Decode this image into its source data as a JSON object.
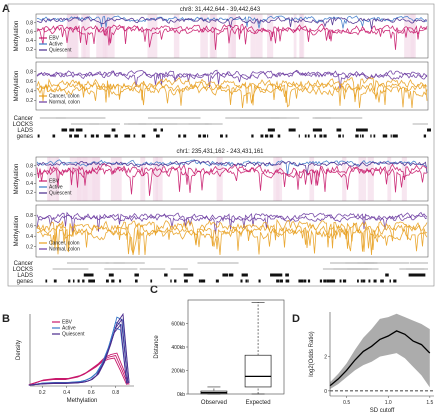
{
  "panel_labels": {
    "a": "A",
    "b": "B",
    "c": "C",
    "d": "D"
  },
  "colors": {
    "ebv": "#c8196c",
    "active": "#3a78c8",
    "quiescent": "#4a2a8c",
    "cancer": "#e8a020",
    "normal": "#6a3aa0",
    "shade": "#f3dcea",
    "gray_band": "#bdbdbd"
  },
  "panel_a": {
    "region1_title": "chr8: 31,442,644 - 39,442,643",
    "region2_title": "chr1: 235,431,162 - 243,431,161",
    "ylabel": "Methylation",
    "yticks": [
      "0.2",
      "0.4",
      "0.6",
      "0.8"
    ],
    "legend_top": [
      "EBV",
      "Active",
      "Quiescent"
    ],
    "legend_bottom": [
      "Cancer, colon",
      "Normal, colon"
    ],
    "track_labels": [
      "Cancer",
      "LOCKS",
      "LADS",
      "genes"
    ]
  },
  "chart_data": [
    {
      "type": "line",
      "title": "",
      "xlabel": "Methylation",
      "ylabel": "Density",
      "xticks": [
        "0.2",
        "0.4",
        "0.6",
        "0.8"
      ],
      "xlim": [
        0.1,
        0.95
      ],
      "series": [
        {
          "name": "EBV",
          "x": [
            0.1,
            0.2,
            0.3,
            0.4,
            0.5,
            0.55,
            0.6,
            0.65,
            0.7,
            0.75,
            0.8,
            0.85,
            0.9
          ],
          "values": [
            0.05,
            0.2,
            0.25,
            0.25,
            0.35,
            0.45,
            0.6,
            0.75,
            0.95,
            1.05,
            1.1,
            0.6,
            0.05
          ]
        },
        {
          "name": "Active",
          "x": [
            0.1,
            0.2,
            0.3,
            0.4,
            0.5,
            0.55,
            0.6,
            0.65,
            0.7,
            0.75,
            0.8,
            0.85,
            0.9
          ],
          "values": [
            0.03,
            0.1,
            0.12,
            0.12,
            0.15,
            0.2,
            0.3,
            0.5,
            0.9,
            1.5,
            2.3,
            2.2,
            0.1
          ]
        },
        {
          "name": "Quiescent",
          "x": [
            0.1,
            0.2,
            0.3,
            0.4,
            0.5,
            0.55,
            0.6,
            0.65,
            0.7,
            0.75,
            0.8,
            0.85,
            0.9
          ],
          "values": [
            0.03,
            0.08,
            0.1,
            0.1,
            0.12,
            0.15,
            0.22,
            0.4,
            0.8,
            1.4,
            2.1,
            2.4,
            0.1
          ]
        }
      ]
    },
    {
      "type": "box",
      "title": "",
      "ylabel": "Distance",
      "yticks": [
        "0kb",
        "200kb",
        "400kb",
        "600kb"
      ],
      "ylim": [
        0,
        800
      ],
      "categories": [
        "Observed",
        "Expected"
      ],
      "boxes": [
        {
          "name": "Observed",
          "whisker_low": 0,
          "q1": 2,
          "median": 12,
          "q3": 25,
          "whisker_high": 60
        },
        {
          "name": "Expected",
          "whisker_low": 0,
          "q1": 60,
          "median": 150,
          "q3": 330,
          "whisker_high": 780
        }
      ]
    },
    {
      "type": "area",
      "title": "",
      "xlabel": "SD cutoff",
      "ylabel": "log2(Odds Ratio)",
      "xticks": [
        "0.5",
        "1.0",
        "1.5"
      ],
      "yticks": [
        "0",
        "2"
      ],
      "xlim": [
        0.3,
        1.55
      ],
      "ylim": [
        -0.3,
        4.6
      ],
      "x": [
        0.3,
        0.4,
        0.5,
        0.6,
        0.7,
        0.8,
        0.9,
        1.0,
        1.1,
        1.2,
        1.3,
        1.4,
        1.5
      ],
      "series": [
        {
          "name": "",
          "values": [
            0.3,
            0.7,
            1.2,
            1.8,
            2.3,
            2.6,
            3.0,
            3.2,
            3.5,
            3.3,
            2.9,
            2.7,
            2.2
          ],
          "lower": [
            0.1,
            0.4,
            0.8,
            1.2,
            1.5,
            1.7,
            2.0,
            2.1,
            2.2,
            1.9,
            1.4,
            0.9,
            0.2
          ],
          "upper": [
            0.5,
            1.0,
            1.6,
            2.4,
            3.1,
            3.6,
            4.2,
            4.3,
            4.5,
            4.3,
            4.1,
            3.9,
            3.6
          ]
        }
      ],
      "reference_line": 0
    }
  ]
}
